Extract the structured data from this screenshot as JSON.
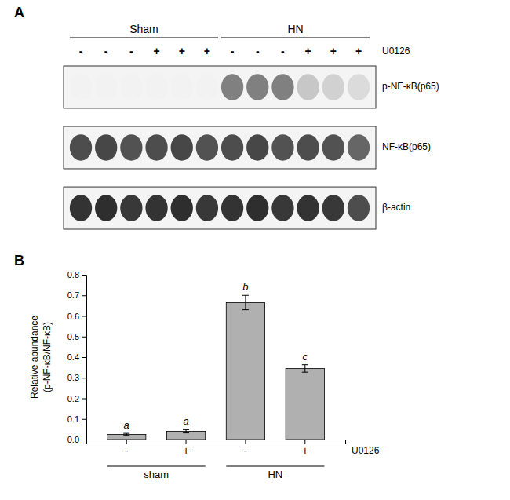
{
  "chart_data": [
    {
      "type": "heatmap",
      "title": "A",
      "groups": [
        {
          "name": "Sham",
          "size": 6
        },
        {
          "name": "HN",
          "size": 6
        }
      ],
      "categories": [
        "-",
        "-",
        "-",
        "+",
        "+",
        "+",
        "-",
        "-",
        "-",
        "+",
        "+",
        "+"
      ],
      "xlabel": "U0126",
      "rows": [
        "p-NF-κB(p65)",
        "NF-κB(p65)",
        "β-actin"
      ],
      "cells": [
        [
          0.05,
          0.05,
          0.05,
          0.05,
          0.05,
          0.05,
          0.5,
          0.5,
          0.5,
          0.22,
          0.18,
          0.14
        ],
        [
          0.7,
          0.72,
          0.68,
          0.7,
          0.72,
          0.68,
          0.7,
          0.72,
          0.68,
          0.7,
          0.68,
          0.6
        ],
        [
          0.8,
          0.82,
          0.78,
          0.8,
          0.82,
          0.78,
          0.8,
          0.82,
          0.78,
          0.8,
          0.78,
          0.7
        ]
      ],
      "clim": [
        0,
        1
      ]
    },
    {
      "type": "bar",
      "title": "B",
      "categories": [
        "-",
        "+",
        "-",
        "+"
      ],
      "values": [
        0.025,
        0.04,
        0.665,
        0.345
      ],
      "errors": [
        0.005,
        0.008,
        0.035,
        0.018
      ],
      "annotations": [
        "a",
        "a",
        "b",
        "c"
      ],
      "color": "#b0b0b0",
      "xlabel": "U0126",
      "groups": [
        {
          "name": "sham",
          "size": 2
        },
        {
          "name": "HN",
          "size": 2
        }
      ],
      "ylabel": [
        "Relative abundance",
        "(p-NF-κB/NF-κB)"
      ],
      "ylim": [
        0,
        0.8
      ],
      "yticks": [
        {
          "value": 0.0,
          "label": "0.0"
        },
        0.1,
        0.2,
        0.3,
        0.4,
        0.5,
        0.6,
        0.7,
        0.8
      ],
      "grid": false
    }
  ]
}
